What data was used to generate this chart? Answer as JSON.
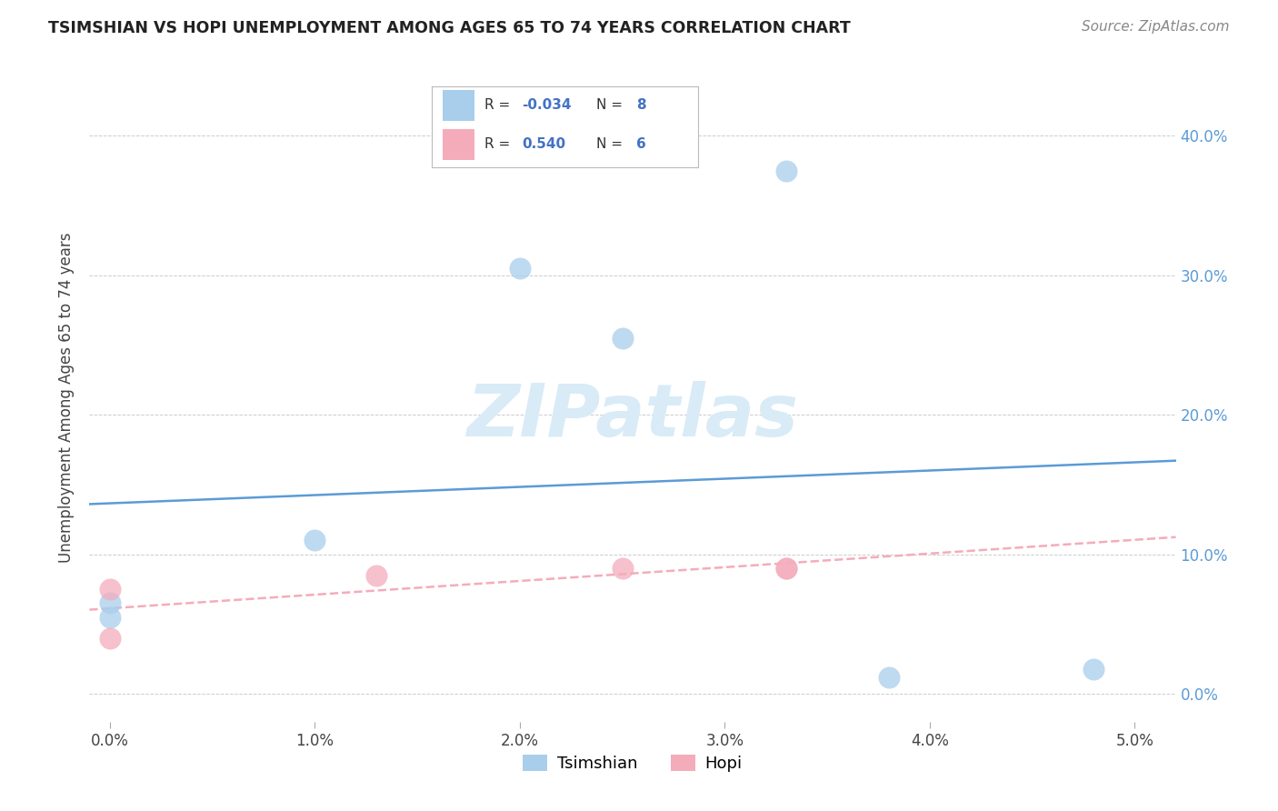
{
  "title": "TSIMSHIAN VS HOPI UNEMPLOYMENT AMONG AGES 65 TO 74 YEARS CORRELATION CHART",
  "source": "Source: ZipAtlas.com",
  "ylabel": "Unemployment Among Ages 65 to 74 years",
  "xlabel_ticks": [
    "0.0%",
    "1.0%",
    "2.0%",
    "3.0%",
    "4.0%",
    "5.0%"
  ],
  "xlabel_vals": [
    0.0,
    0.01,
    0.02,
    0.03,
    0.04,
    0.05
  ],
  "ylabel_ticks": [
    "0.0%",
    "10.0%",
    "20.0%",
    "30.0%",
    "40.0%"
  ],
  "ylabel_vals": [
    0.0,
    0.1,
    0.2,
    0.3,
    0.4
  ],
  "xlim": [
    -0.001,
    0.052
  ],
  "ylim": [
    -0.02,
    0.445
  ],
  "tsimshian_x": [
    0.0,
    0.0,
    0.01,
    0.02,
    0.025,
    0.033,
    0.038,
    0.048
  ],
  "tsimshian_y": [
    0.065,
    0.055,
    0.11,
    0.305,
    0.255,
    0.375,
    0.012,
    0.018
  ],
  "hopi_x": [
    0.0,
    0.0,
    0.013,
    0.025,
    0.033,
    0.033
  ],
  "hopi_y": [
    0.075,
    0.04,
    0.085,
    0.09,
    0.09,
    0.09
  ],
  "tsimshian_color": "#A8CEEC",
  "hopi_color": "#F4ACBB",
  "tsimshian_line_color": "#5B9BD5",
  "hopi_line_color": "#F4ACBB",
  "watermark_color": "#D8EBF7",
  "background_color": "#FFFFFF",
  "grid_color": "#CCCCCC"
}
